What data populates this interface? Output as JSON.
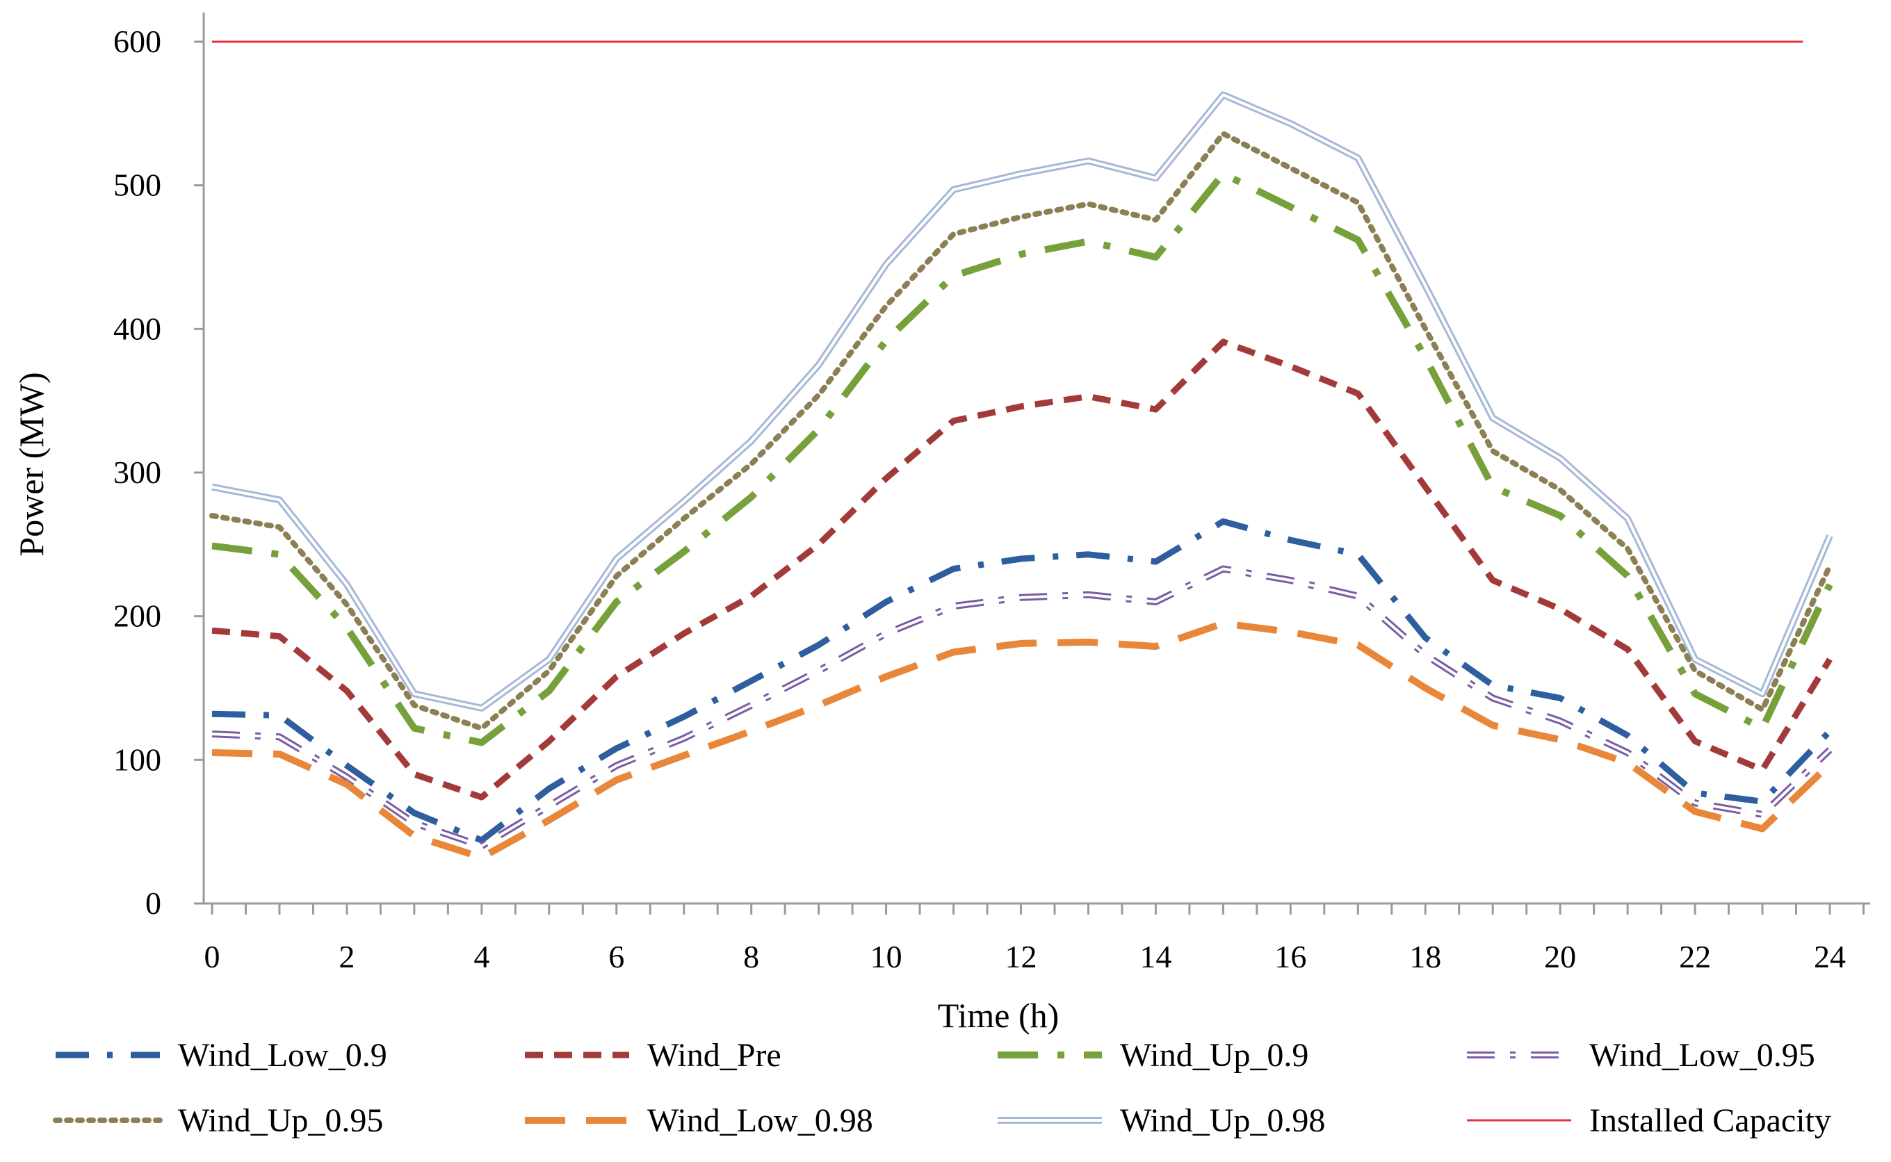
{
  "chart_data": {
    "type": "line",
    "title": "",
    "xlabel": "Time (h)",
    "ylabel": "Power (MW)",
    "xlim": [
      0,
      24
    ],
    "ylim": [
      0,
      600
    ],
    "x_ticks": [
      "0",
      "2",
      "4",
      "6",
      "8",
      "10",
      "12",
      "14",
      "16",
      "18",
      "20",
      "22",
      "24"
    ],
    "y_ticks": [
      "0",
      "100",
      "200",
      "300",
      "400",
      "500",
      "600"
    ],
    "grid": false,
    "legend_position": "bottom",
    "x": [
      0,
      1,
      2,
      3,
      4,
      5,
      6,
      7,
      8,
      9,
      10,
      11,
      12,
      13,
      14,
      15,
      16,
      17,
      18,
      19,
      20,
      21,
      22,
      23,
      24
    ],
    "series": [
      {
        "name": "Wind_Low_0.9",
        "color": "#2E5E9E",
        "style": "dash-dot",
        "values": [
          132,
          131,
          96,
          63,
          44,
          80,
          108,
          130,
          155,
          180,
          210,
          233,
          240,
          243,
          238,
          266,
          253,
          243,
          185,
          152,
          143,
          117,
          77,
          71,
          120
        ]
      },
      {
        "name": "Wind_Pre",
        "color": "#A33A3A",
        "style": "dash",
        "values": [
          190,
          186,
          148,
          90,
          74,
          113,
          158,
          188,
          214,
          250,
          296,
          336,
          346,
          353,
          344,
          391,
          374,
          355,
          290,
          225,
          205,
          177,
          113,
          93,
          170
        ]
      },
      {
        "name": "Wind_Up_0.9",
        "color": "#76A03A",
        "style": "long-dash-dot",
        "values": [
          249,
          243,
          192,
          122,
          112,
          148,
          210,
          245,
          283,
          330,
          392,
          437,
          452,
          461,
          450,
          508,
          485,
          462,
          380,
          290,
          270,
          228,
          146,
          122,
          222
        ]
      },
      {
        "name": "Wind_Low_0.95",
        "color": "#7A5CA3",
        "style": "double-dash-dot",
        "values": [
          118,
          116,
          88,
          56,
          40,
          68,
          96,
          115,
          138,
          162,
          188,
          207,
          213,
          215,
          210,
          233,
          225,
          214,
          173,
          143,
          127,
          105,
          70,
          62,
          107
        ]
      },
      {
        "name": "Wind_Up_0.95",
        "color": "#8C7F54",
        "style": "dot",
        "values": [
          270,
          262,
          208,
          138,
          122,
          162,
          228,
          268,
          306,
          354,
          416,
          466,
          478,
          487,
          476,
          536,
          512,
          488,
          400,
          315,
          288,
          247,
          162,
          135,
          235
        ]
      },
      {
        "name": "Wind_Low_0.98",
        "color": "#E8873A",
        "style": "long-dash",
        "values": [
          105,
          104,
          83,
          47,
          32,
          58,
          86,
          103,
          120,
          138,
          158,
          175,
          181,
          182,
          179,
          195,
          189,
          180,
          150,
          124,
          114,
          98,
          64,
          52,
          97
        ]
      },
      {
        "name": "Wind_Up_0.98",
        "color": "#A5B8D8",
        "style": "double",
        "values": [
          290,
          281,
          222,
          146,
          136,
          170,
          240,
          280,
          322,
          375,
          445,
          497,
          508,
          517,
          505,
          563,
          543,
          519,
          430,
          338,
          310,
          268,
          170,
          146,
          256
        ]
      },
      {
        "name": "Installed Capacity",
        "color": "#E8303A",
        "style": "solid",
        "values": [
          600,
          600,
          600,
          600,
          600,
          600,
          600,
          600,
          600,
          600,
          600,
          600,
          600,
          600,
          600,
          600,
          600,
          600,
          600,
          600,
          600,
          600,
          600,
          600,
          600
        ]
      }
    ]
  }
}
